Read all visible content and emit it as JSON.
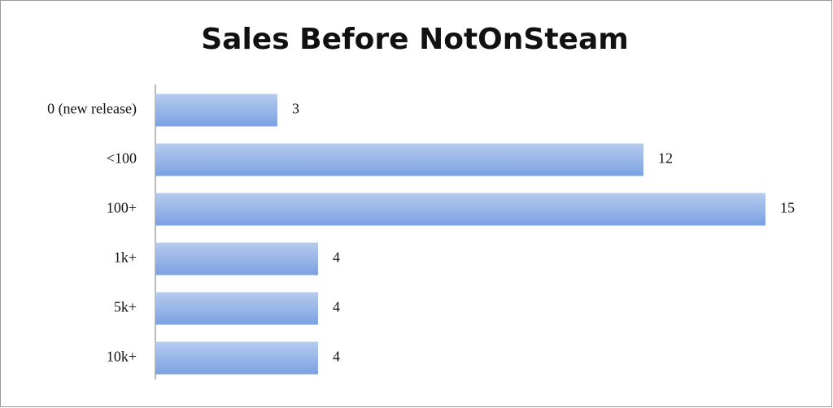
{
  "chart_data": {
    "type": "bar",
    "orientation": "horizontal",
    "title": "Sales Before NotOnSteam",
    "categories": [
      "0 (new release)",
      "<100",
      "100+",
      "1k+",
      "5k+",
      "10k+"
    ],
    "values": [
      3,
      12,
      15,
      4,
      4,
      4
    ],
    "color": "#7ba1e2"
  }
}
